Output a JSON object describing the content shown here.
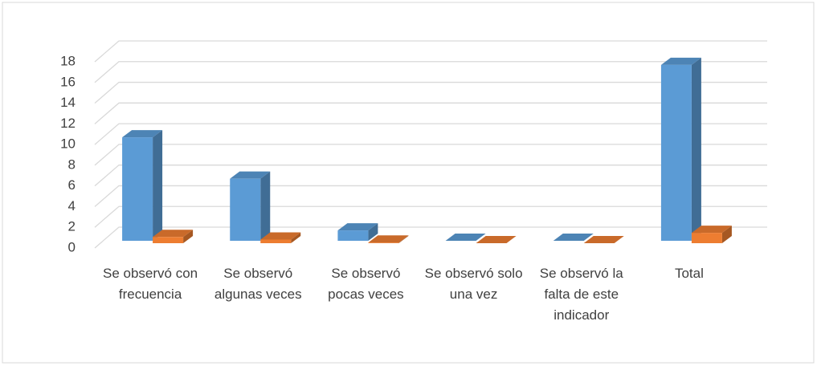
{
  "chart_data": {
    "type": "bar3d",
    "categories": [
      "Se observó con frecuencia",
      "Se observó algunas veces",
      "Se observó pocas veces",
      "Se observó solo una vez",
      "Se observó la falta de este indicador",
      "Total"
    ],
    "series": [
      {
        "color": "#5b9bd5",
        "values": [
          10,
          6,
          1,
          0,
          0,
          17
        ]
      },
      {
        "color": "#ed7d31",
        "values": [
          0.6,
          0.35,
          0.06,
          0,
          0,
          1
        ]
      }
    ],
    "ylim": [
      0,
      18
    ],
    "yticks": [
      0,
      2,
      4,
      6,
      8,
      10,
      12,
      14,
      16,
      18
    ],
    "grid": true
  }
}
